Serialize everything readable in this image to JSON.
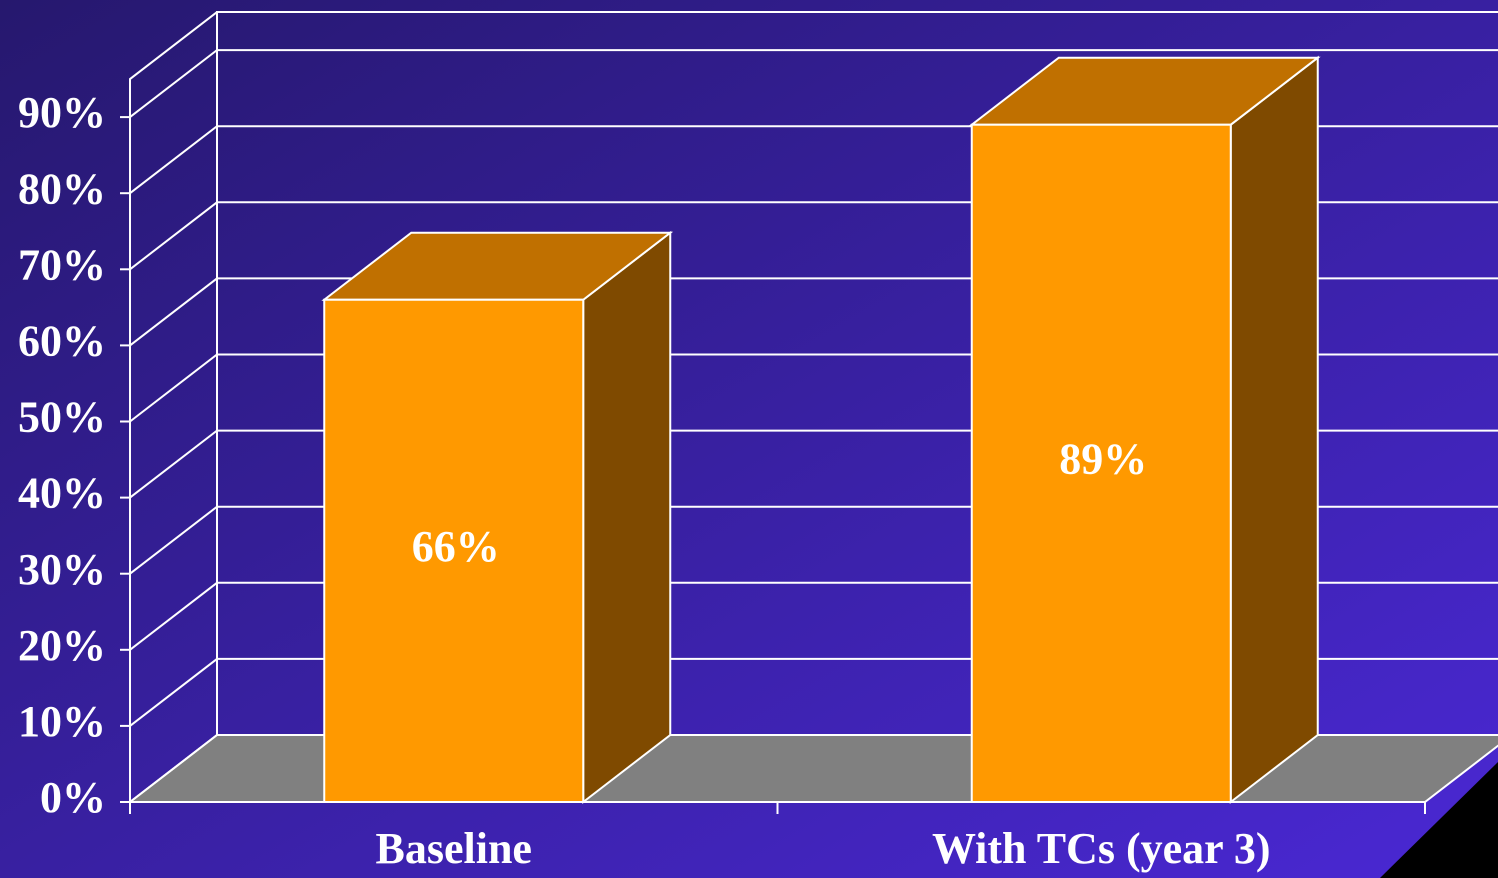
{
  "chart_data": {
    "type": "bar3d",
    "categories": [
      "Baseline",
      "With TCs (year 3)"
    ],
    "values": [
      66,
      89
    ],
    "value_labels": [
      "66%",
      "89%"
    ],
    "color": "#ff9900",
    "ylim": [
      0,
      95
    ],
    "yticks": [
      {
        "value": 0,
        "label": "0%"
      },
      {
        "value": 10,
        "label": "10%"
      },
      {
        "value": 20,
        "label": "20%"
      },
      {
        "value": 30,
        "label": "30%"
      },
      {
        "value": 40,
        "label": "40%"
      },
      {
        "value": 50,
        "label": "50%"
      },
      {
        "value": 60,
        "label": "60%"
      },
      {
        "value": 70,
        "label": "70%"
      },
      {
        "value": 80,
        "label": "80%"
      },
      {
        "value": 90,
        "label": "90%"
      }
    ],
    "grid": true
  }
}
